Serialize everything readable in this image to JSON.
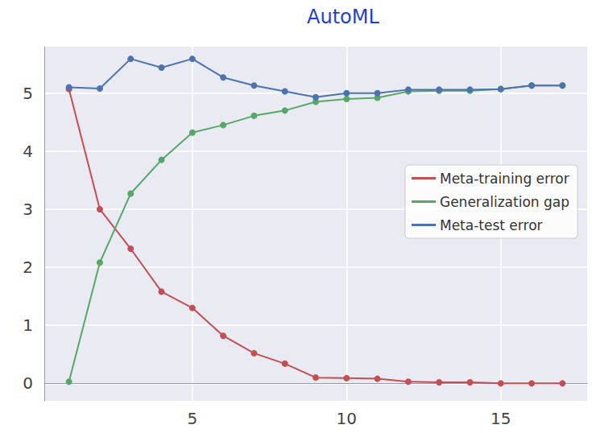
{
  "chart_data": {
    "type": "line",
    "title": "AutoML",
    "x": [
      1,
      2,
      3,
      4,
      5,
      6,
      7,
      8,
      9,
      10,
      11,
      12,
      13,
      14,
      15,
      16,
      17
    ],
    "series": [
      {
        "name": "Meta-training error",
        "color": "#c44e52",
        "values": [
          5.07,
          3.0,
          2.32,
          1.58,
          1.3,
          0.82,
          0.52,
          0.34,
          0.1,
          0.09,
          0.08,
          0.03,
          0.02,
          0.02,
          0.0,
          0.0,
          0.0
        ]
      },
      {
        "name": "Generalization gap",
        "color": "#55a868",
        "values": [
          0.03,
          2.08,
          3.27,
          3.85,
          4.32,
          4.45,
          4.61,
          4.7,
          4.85,
          4.9,
          4.92,
          5.03,
          5.04,
          5.04,
          5.07,
          5.13,
          5.13
        ]
      },
      {
        "name": "Meta-test error",
        "color": "#4c72b0",
        "values": [
          5.1,
          5.08,
          5.59,
          5.44,
          5.59,
          5.27,
          5.13,
          5.03,
          4.93,
          5.0,
          5.0,
          5.06,
          5.06,
          5.06,
          5.07,
          5.13,
          5.13
        ]
      }
    ],
    "xlim": [
      0.2,
      17.8
    ],
    "xticks": [
      5,
      10,
      15
    ],
    "ylim": [
      -0.3,
      5.8
    ],
    "yticks": [
      0,
      1,
      2,
      3,
      4,
      5
    ],
    "grid": true,
    "legend": "center right",
    "marker": "circle"
  }
}
